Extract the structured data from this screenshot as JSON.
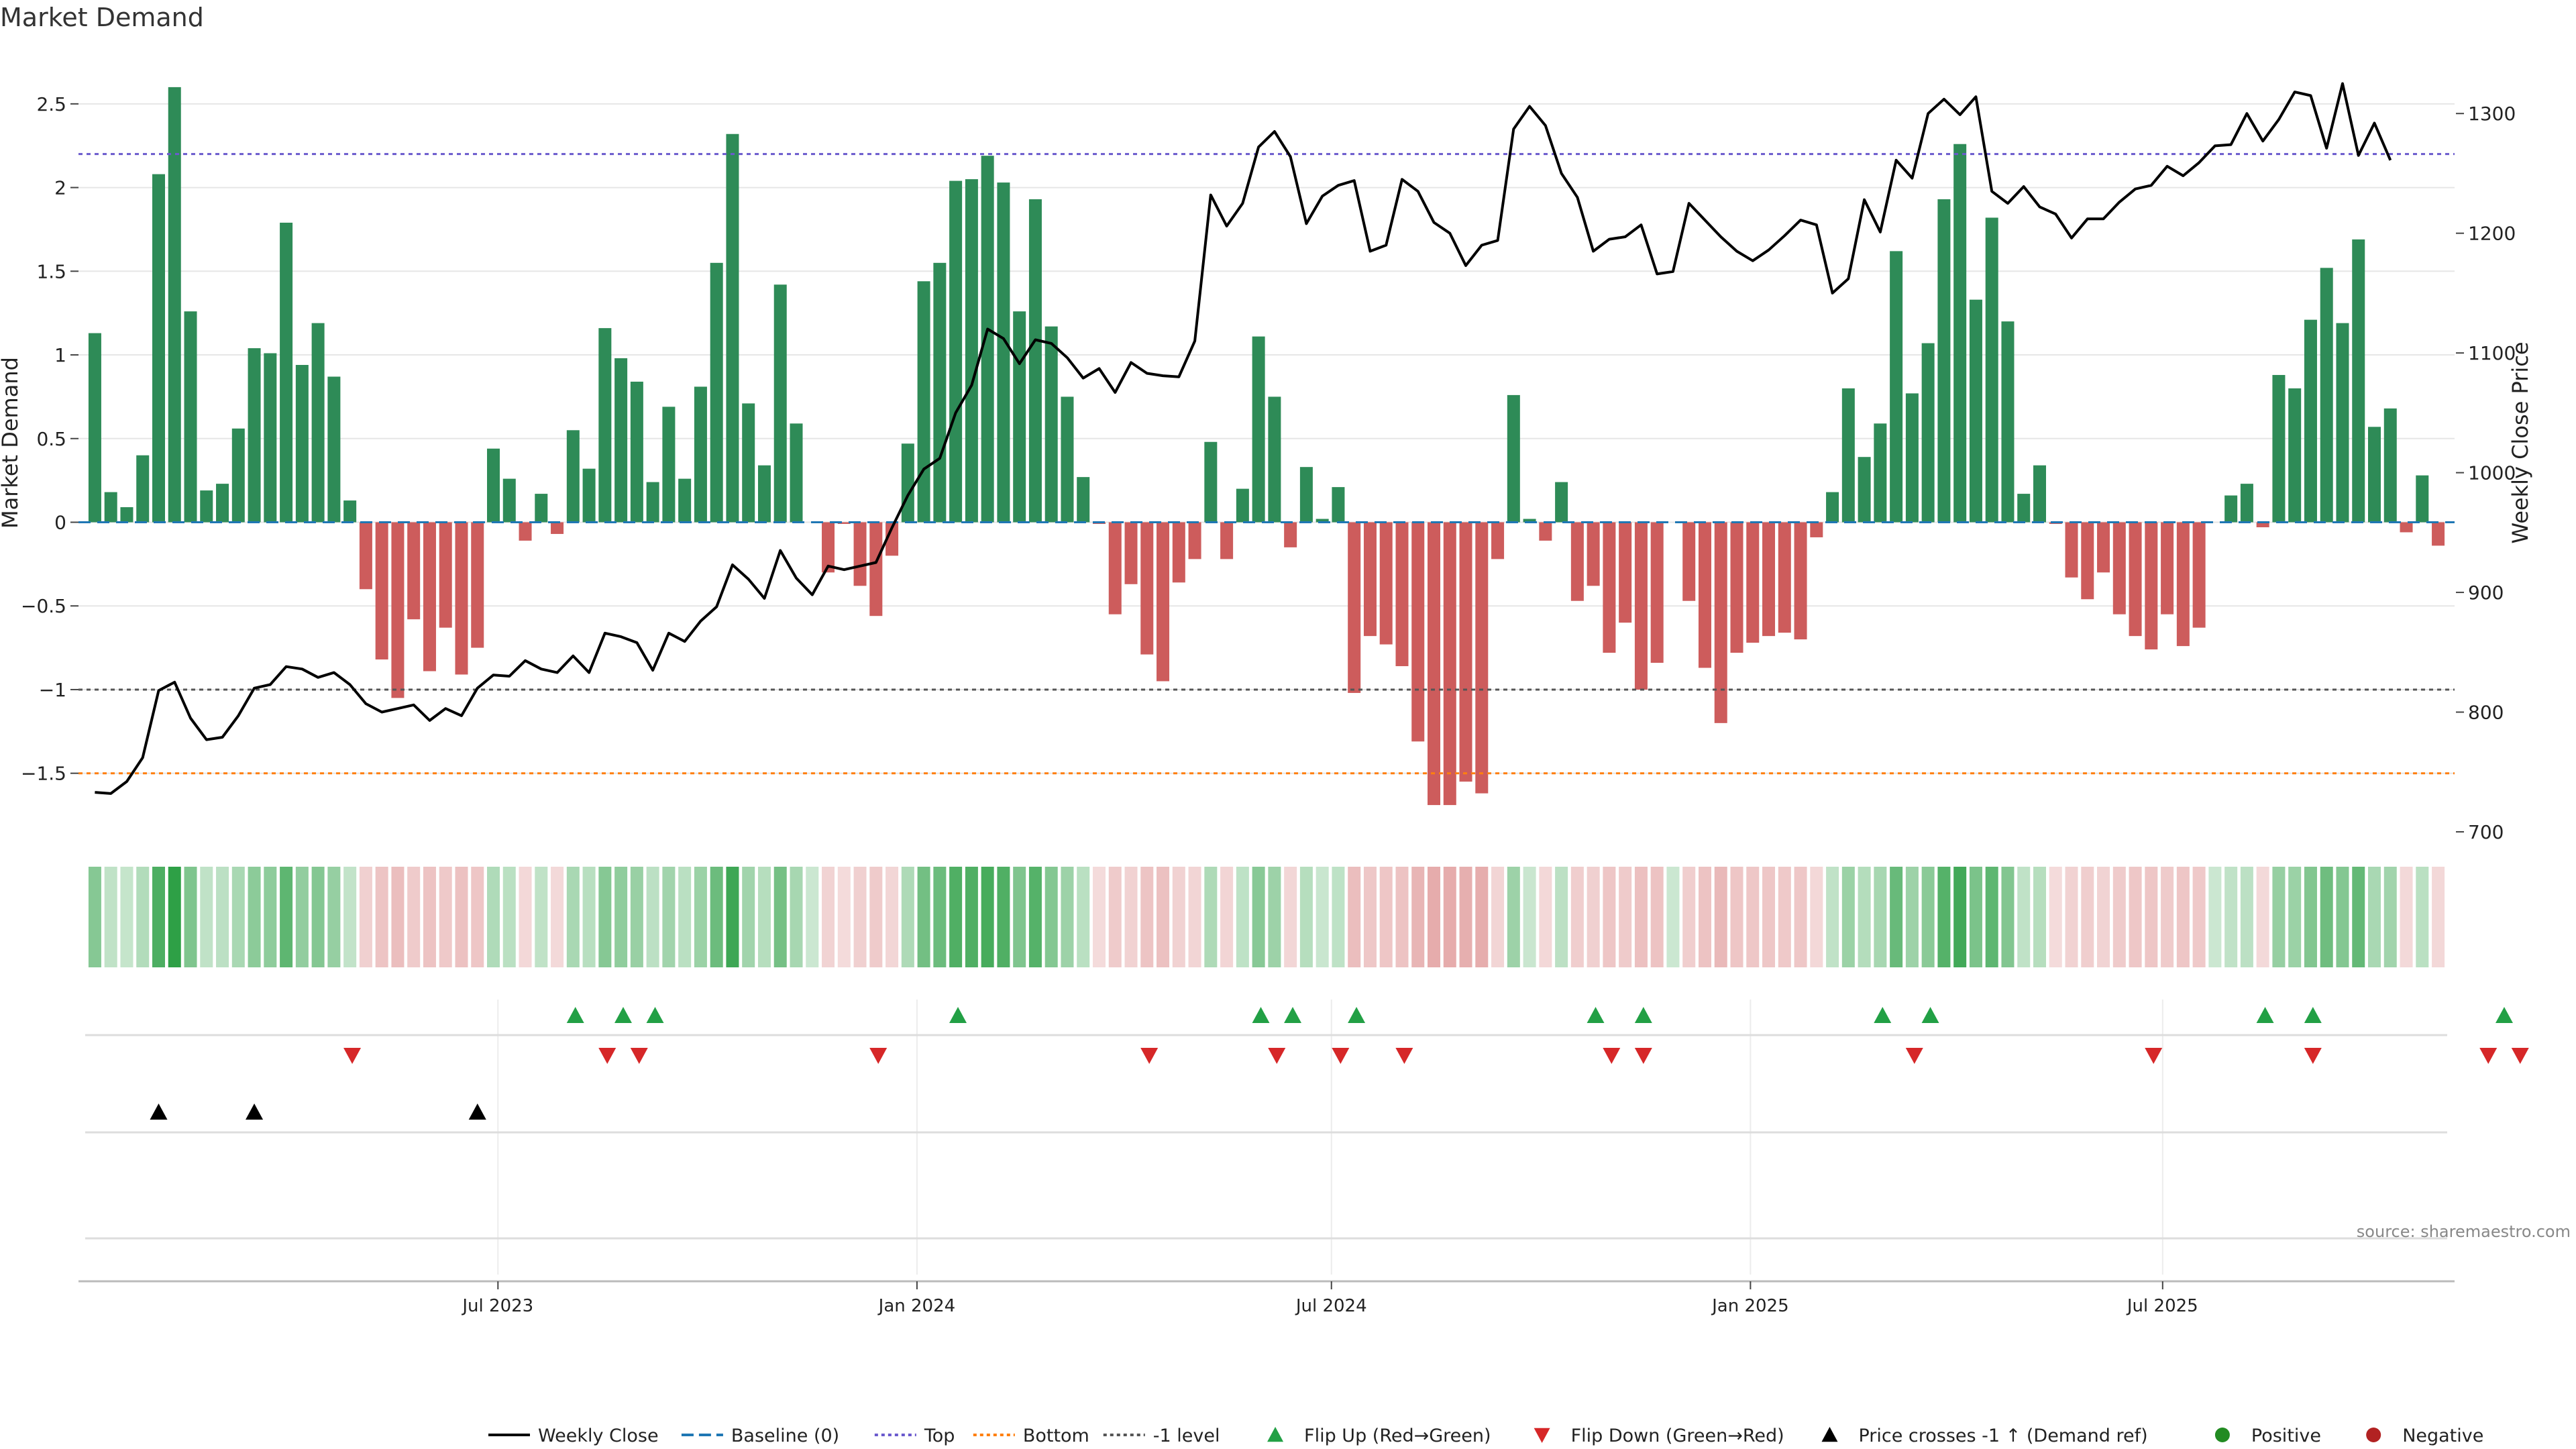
{
  "title": "Market Demand",
  "source": "source: sharemaestro.com",
  "chart_data": {
    "type": "bar",
    "x_start": "2023-01-05",
    "x_step_days": 7,
    "xlabel": "",
    "ylabel": "Market Demand",
    "ylabel_right": "Weekly Close Price",
    "ylim": [
      -1.85,
      2.8
    ],
    "ylim_right": [
      700,
      1350
    ],
    "yticks": [
      -1.5,
      -1,
      -0.5,
      0,
      0.5,
      1,
      1.5,
      2,
      2.5
    ],
    "yticks_right": [
      700,
      800,
      900,
      1000,
      1100,
      1200,
      1300
    ],
    "xtick_labels": [
      {
        "label": "Jul 2023",
        "date": "2023-07-01"
      },
      {
        "label": "Jan 2024",
        "date": "2024-01-01"
      },
      {
        "label": "Jul 2024",
        "date": "2024-07-01"
      },
      {
        "label": "Jan 2025",
        "date": "2025-01-01"
      },
      {
        "label": "Jul 2025",
        "date": "2025-07-01"
      }
    ],
    "levels": {
      "top": 2.2,
      "bottom": -1.5,
      "minus_one": -1,
      "baseline": 0
    },
    "demand": [
      1.13,
      0.18,
      0.09,
      0.4,
      2.08,
      2.6,
      1.26,
      0.19,
      0.23,
      0.56,
      1.04,
      1.01,
      1.79,
      0.94,
      1.19,
      0.87,
      0.13,
      -0.4,
      -0.82,
      -1.05,
      -0.58,
      -0.89,
      -0.63,
      -0.91,
      -0.75,
      0.44,
      0.26,
      -0.11,
      0.17,
      -0.07,
      0.55,
      0.32,
      1.16,
      0.98,
      0.84,
      0.24,
      0.69,
      0.26,
      0.81,
      1.55,
      2.32,
      0.71,
      0.34,
      1.42,
      0.59,
      0.0,
      -0.3,
      -0.01,
      -0.38,
      -0.56,
      -0.2,
      0.47,
      1.44,
      1.55,
      2.04,
      2.05,
      2.19,
      2.03,
      1.26,
      1.93,
      1.17,
      0.75,
      0.27,
      -0.01,
      -0.55,
      -0.37,
      -0.79,
      -0.95,
      -0.36,
      -0.22,
      0.48,
      -0.22,
      0.2,
      1.11,
      0.75,
      -0.15,
      0.33,
      0.02,
      0.21,
      -1.02,
      -0.68,
      -0.73,
      -0.86,
      -1.31,
      -1.69,
      -1.69,
      -1.55,
      -1.62,
      -0.22,
      0.76,
      0.02,
      -0.11,
      0.24,
      -0.47,
      -0.38,
      -0.78,
      -0.6,
      -1.0,
      -0.84,
      0.0,
      -0.47,
      -0.87,
      -1.2,
      -0.78,
      -0.72,
      -0.68,
      -0.66,
      -0.7,
      -0.09,
      0.18,
      0.8,
      0.39,
      0.59,
      1.62,
      0.77,
      1.07,
      1.93,
      2.26,
      1.33,
      1.82,
      1.2,
      0.17,
      0.34,
      -0.01,
      -0.33,
      -0.46,
      -0.3,
      -0.55,
      -0.68,
      -0.76,
      -0.55,
      -0.74,
      -0.63,
      0.0,
      0.16,
      0.23,
      -0.03,
      0.88,
      0.8,
      1.21,
      1.52,
      1.19,
      1.69,
      0.57,
      0.68,
      -0.06,
      0.28,
      -0.14
    ],
    "weekly_close": [
      733,
      732,
      742,
      762,
      818,
      825,
      795,
      777,
      779,
      797,
      820,
      823,
      838,
      836,
      829,
      833,
      823,
      807,
      800,
      803,
      806,
      793,
      803,
      797,
      820,
      831,
      830,
      843,
      836,
      833,
      847,
      833,
      866,
      863,
      858,
      835,
      866,
      859,
      876,
      888,
      923,
      911,
      895,
      935,
      912,
      898,
      922,
      919,
      922,
      925,
      954,
      981,
      1003,
      1012,
      1050,
      1073,
      1120,
      1112,
      1091,
      1111,
      1108,
      1096,
      1079,
      1087,
      1067,
      1092,
      1083,
      1081,
      1080,
      1110,
      1232,
      1206,
      1225,
      1272,
      1285,
      1264,
      1208,
      1231,
      1240,
      1244,
      1185,
      1190,
      1245,
      1235,
      1209,
      1200,
      1173,
      1190,
      1194,
      1287,
      1306,
      1290,
      1250,
      1230,
      1185,
      1195,
      1197,
      1207,
      1166,
      1168,
      1225,
      1211,
      1197,
      1185,
      1177,
      1186,
      1198,
      1211,
      1207,
      1150,
      1162,
      1228,
      1201,
      1261,
      1246,
      1300,
      1312,
      1299,
      1314,
      1235,
      1225,
      1239,
      1222,
      1216,
      1196,
      1212,
      1212,
      1226,
      1237,
      1240,
      1256,
      1248,
      1259,
      1273,
      1274,
      1300,
      1277,
      1295,
      1318,
      1315,
      1271,
      1325,
      1265,
      1292,
      1261
    ],
    "heat_strip": "shade of each weekly bar tracks demand magnitude (green positive, red negative)",
    "flip_up_dates": [
      "2023-08-04",
      "2023-08-25",
      "2023-09-08",
      "2024-01-19",
      "2024-05-31",
      "2024-06-14",
      "2024-07-12",
      "2024-10-25",
      "2024-11-15",
      "2025-02-28",
      "2025-03-21",
      "2025-08-15",
      "2025-09-05",
      "2025-11-28"
    ],
    "flip_down_dates": [
      "2023-04-28",
      "2023-08-18",
      "2023-09-01",
      "2023-12-15",
      "2024-04-12",
      "2024-06-07",
      "2024-07-05",
      "2024-08-02",
      "2024-11-01",
      "2024-11-15",
      "2025-03-14",
      "2025-06-27",
      "2025-09-05",
      "2025-11-21",
      "2025-12-05"
    ],
    "price_cross_dates": [
      "2023-02-02",
      "2023-03-16",
      "2023-06-22"
    ],
    "legend_position": "bottom-center",
    "legend": [
      {
        "key": "weekly_close",
        "label": "Weekly Close",
        "color": "#000000",
        "style": "line"
      },
      {
        "key": "baseline",
        "label": "Baseline (0)",
        "color": "#1f77b4",
        "style": "dashed"
      },
      {
        "key": "top",
        "label": "Top",
        "color": "#6a5acd",
        "style": "dotted"
      },
      {
        "key": "bottom",
        "label": "Bottom",
        "color": "#ff7f0e",
        "style": "dotted"
      },
      {
        "key": "minus_one",
        "label": "-1 level",
        "color": "#555555",
        "style": "dotted"
      },
      {
        "key": "flip_up",
        "label": "Flip Up (Red→Green)",
        "color": "#22a045",
        "style": "triangle-up"
      },
      {
        "key": "flip_down",
        "label": "Flip Down (Green→Red)",
        "color": "#d62728",
        "style": "triangle-down"
      },
      {
        "key": "price_cross",
        "label": "Price crosses -1 ↑ (Demand ref)",
        "color": "#000000",
        "style": "triangle-up"
      },
      {
        "key": "positive",
        "label": "Positive",
        "color": "#228b22",
        "style": "dot"
      },
      {
        "key": "negative",
        "label": "Negative",
        "color": "#b22222",
        "style": "dot"
      }
    ]
  },
  "colors": {
    "positive_bar": "#2e8b57",
    "negative_bar": "#cd5c5c",
    "flip_up": "#22a045",
    "flip_down": "#d62728",
    "grid": "#e6e6e6"
  }
}
